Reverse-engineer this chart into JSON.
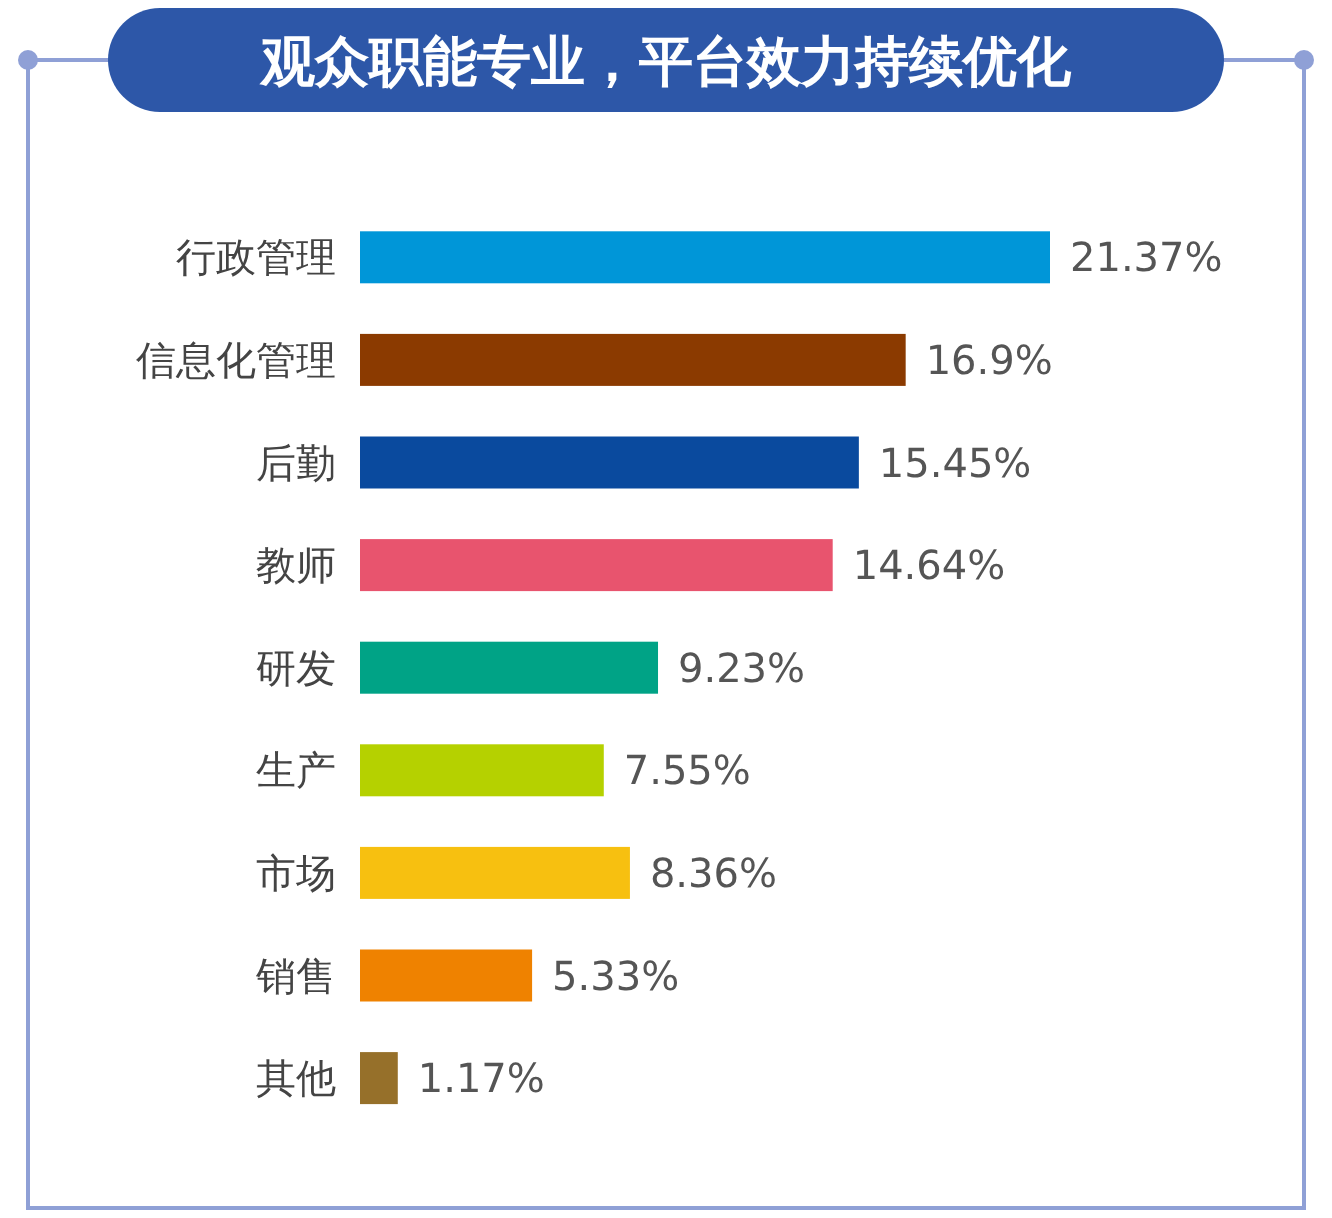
{
  "chart_data": {
    "type": "bar",
    "orientation": "horizontal",
    "title": "观众职能专业，平台效力持续优化",
    "categories": [
      "行政管理",
      "信息化管理",
      "后勤",
      "教师",
      "研发",
      "生产",
      "市场",
      "销售",
      "其他"
    ],
    "values": [
      21.37,
      16.9,
      15.45,
      14.64,
      9.23,
      7.55,
      8.36,
      5.33,
      1.17
    ],
    "value_labels": [
      "21.37%",
      "16.9%",
      "15.45%",
      "14.64%",
      "9.23%",
      "7.55%",
      "8.36%",
      "5.33%",
      "1.17%"
    ],
    "colors": [
      "#0096d8",
      "#8b3a00",
      "#0a4a9e",
      "#e8546e",
      "#00a386",
      "#b5d100",
      "#f7c010",
      "#ef8200",
      "#96702a"
    ]
  }
}
